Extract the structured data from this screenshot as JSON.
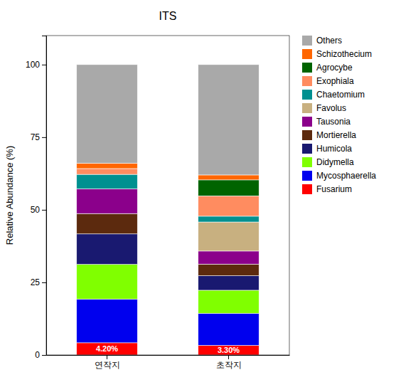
{
  "chart_data": {
    "type": "bar",
    "stacked": true,
    "title": "ITS",
    "ylabel": "Relative Abundance (%)",
    "categories": [
      "연작지",
      "초작지"
    ],
    "ylim": [
      0,
      110
    ],
    "yticks": [
      0,
      25,
      50,
      75,
      100
    ],
    "grid": false,
    "legend": "right",
    "series": [
      {
        "name": "Fusarium",
        "color": "#FF0000",
        "values": [
          4.2,
          3.3
        ],
        "value_labels": [
          "4.20%",
          "3.30%"
        ]
      },
      {
        "name": "Mycosphaerella",
        "color": "#0000EE",
        "values": [
          15.0,
          11.0
        ]
      },
      {
        "name": "Didymella",
        "color": "#80FF00",
        "values": [
          12.0,
          8.0
        ]
      },
      {
        "name": "Humicola",
        "color": "#191970",
        "values": [
          10.5,
          5.0
        ]
      },
      {
        "name": "Mortierella",
        "color": "#5C2A0E",
        "values": [
          7.0,
          4.0
        ]
      },
      {
        "name": "Tausonia",
        "color": "#8B008B",
        "values": [
          8.5,
          4.5
        ]
      },
      {
        "name": "Favolus",
        "color": "#C8B080",
        "values": [
          0.0,
          10.0
        ]
      },
      {
        "name": "Chaetomium",
        "color": "#009090",
        "values": [
          5.0,
          2.0
        ]
      },
      {
        "name": "Exophiala",
        "color": "#FF8C60",
        "values": [
          2.0,
          7.0
        ]
      },
      {
        "name": "Agrocybe",
        "color": "#006400",
        "values": [
          0.0,
          5.5
        ]
      },
      {
        "name": "Schizothecium",
        "color": "#FF6600",
        "values": [
          1.8,
          1.7
        ]
      },
      {
        "name": "Others",
        "color": "#A9A9A9",
        "values": [
          34.0,
          38.0
        ]
      }
    ]
  }
}
